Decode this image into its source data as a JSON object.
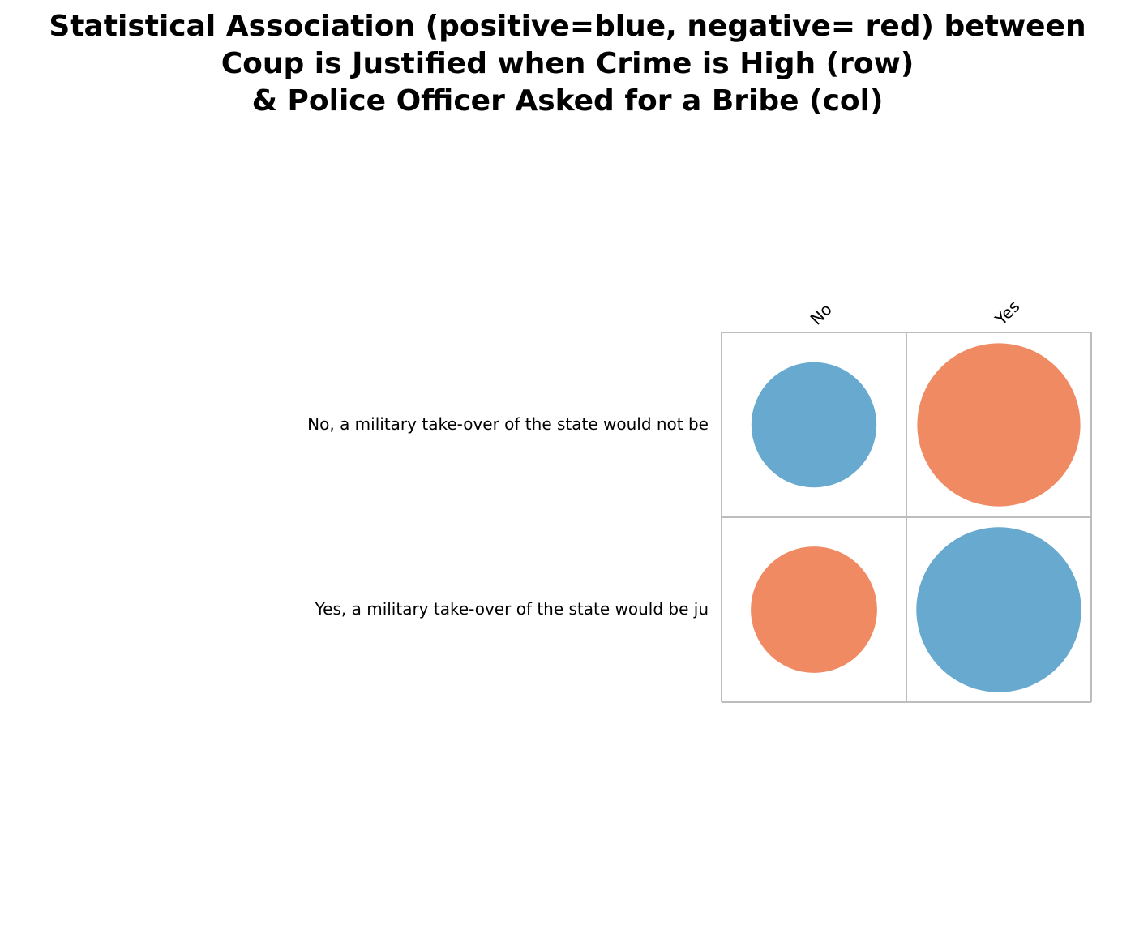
{
  "chart_data": {
    "type": "heatmap",
    "title_lines": [
      "Statistical Association (positive=blue, negative= red) between",
      "Coup is Justified when Crime is High (row)",
      "& Police Officer Asked for a Bribe (col)"
    ],
    "rows": [
      "No, a military take-over of the state would not be",
      "Yes, a military take-over of the state would be ju"
    ],
    "columns": [
      "No",
      "Yes"
    ],
    "values": [
      [
        0.53,
        -0.9
      ],
      [
        -0.54,
        0.92
      ]
    ],
    "value_meaning": "circle area ∝ |association|; sign shown by color",
    "colors": {
      "positive": "#67a9cf",
      "negative": "#ef8a62",
      "grid": "#bdbdbd"
    },
    "grid": true
  }
}
